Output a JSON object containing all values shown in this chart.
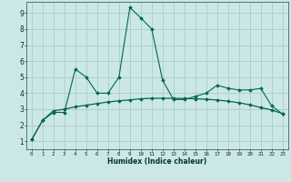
{
  "title": "",
  "xlabel": "Humidex (Indice chaleur)",
  "ylabel": "",
  "background_color": "#cce8e6",
  "grid_color": "#aaccca",
  "line_color": "#006655",
  "x_ticks": [
    0,
    1,
    2,
    3,
    4,
    5,
    6,
    7,
    8,
    9,
    10,
    11,
    12,
    13,
    14,
    15,
    16,
    17,
    18,
    19,
    20,
    21,
    22,
    23
  ],
  "y_ticks": [
    1,
    2,
    3,
    4,
    5,
    6,
    7,
    8,
    9
  ],
  "xlim": [
    -0.5,
    23.5
  ],
  "ylim": [
    0.5,
    9.7
  ],
  "series1_x": [
    0,
    1,
    2,
    3,
    4,
    5,
    6,
    7,
    8,
    9,
    10,
    11,
    12,
    13,
    14,
    15,
    16,
    17,
    18,
    19,
    20,
    21,
    22,
    23
  ],
  "series1_y": [
    1.1,
    2.3,
    2.8,
    2.8,
    5.5,
    5.0,
    4.0,
    4.0,
    5.0,
    9.35,
    8.7,
    8.0,
    4.8,
    3.6,
    3.6,
    3.8,
    4.0,
    4.5,
    4.3,
    4.2,
    4.2,
    4.3,
    3.2,
    2.7
  ],
  "series2_x": [
    0,
    1,
    2,
    3,
    4,
    5,
    6,
    7,
    8,
    9,
    10,
    11,
    12,
    13,
    14,
    15,
    16,
    17,
    18,
    19,
    20,
    21,
    22,
    23
  ],
  "series2_y": [
    1.1,
    2.3,
    2.9,
    3.0,
    3.15,
    3.25,
    3.35,
    3.45,
    3.52,
    3.58,
    3.65,
    3.68,
    3.68,
    3.68,
    3.67,
    3.65,
    3.62,
    3.57,
    3.5,
    3.4,
    3.27,
    3.1,
    2.95,
    2.72
  ]
}
